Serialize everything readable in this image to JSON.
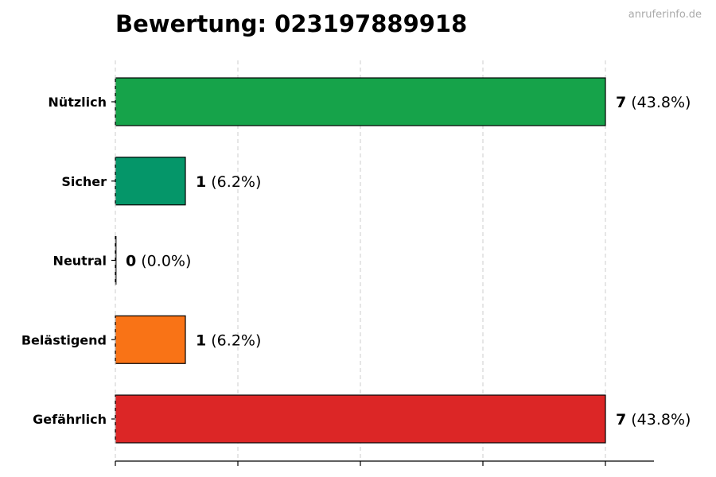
{
  "watermark": "anruferinfo.de",
  "chart_data": {
    "type": "bar",
    "orientation": "horizontal",
    "title": "Bewertung: 023197889918",
    "categories": [
      "Nützlich",
      "Sicher",
      "Neutral",
      "Belästigend",
      "Gefährlich"
    ],
    "values": [
      7,
      1,
      0,
      1,
      7
    ],
    "percent_labels": [
      "(43.8%)",
      "(6.2%)",
      "(0.0%)",
      "(6.2%)",
      "(43.8%)"
    ],
    "colors": [
      "#16a34a",
      "#059669",
      "#6b7280",
      "#f97316",
      "#dc2626"
    ],
    "xlim": [
      0,
      7.7
    ],
    "grid": true,
    "xlabel": "",
    "ylabel": ""
  }
}
